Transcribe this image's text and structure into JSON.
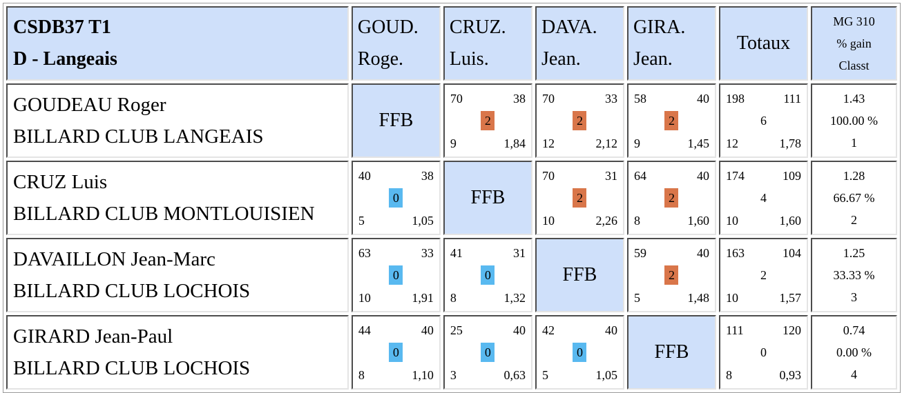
{
  "header": {
    "title_line1": "CSDB37 T1",
    "title_line2": "D - Langeais",
    "columns": [
      {
        "line1": "GOUD.",
        "line2": "Roge."
      },
      {
        "line1": "CRUZ.",
        "line2": "Luis."
      },
      {
        "line1": "DAVA.",
        "line2": "Jean."
      },
      {
        "line1": "GIRA.",
        "line2": "Jean."
      }
    ],
    "totals_label": "Totaux",
    "mg_line1": "MG 310",
    "mg_line2": "% gain",
    "mg_line3": "Classt"
  },
  "ffb_label": "FFB",
  "colors": {
    "header_bg": "#cfe0fa",
    "win_badge": "#d9764a",
    "loss_badge": "#59b9f0"
  },
  "rows": [
    {
      "name": "GOUDEAU Roger",
      "club": "BILLARD CLUB LANGEAIS",
      "cells": [
        null,
        {
          "tl": "70",
          "tr": "38",
          "pts": "2",
          "bl": "9",
          "br": "1,84"
        },
        {
          "tl": "70",
          "tr": "33",
          "pts": "2",
          "bl": "12",
          "br": "2,12"
        },
        {
          "tl": "58",
          "tr": "40",
          "pts": "2",
          "bl": "9",
          "br": "1,45"
        }
      ],
      "totals": {
        "tl": "198",
        "tr": "111",
        "pts": "6",
        "bl": "12",
        "br": "1,78"
      },
      "mg": {
        "avg": "1.43",
        "pct": "100.00 %",
        "rank": "1"
      }
    },
    {
      "name": "CRUZ Luis",
      "club": "BILLARD CLUB MONTLOUISIEN",
      "cells": [
        {
          "tl": "40",
          "tr": "38",
          "pts": "0",
          "bl": "5",
          "br": "1,05"
        },
        null,
        {
          "tl": "70",
          "tr": "31",
          "pts": "2",
          "bl": "10",
          "br": "2,26"
        },
        {
          "tl": "64",
          "tr": "40",
          "pts": "2",
          "bl": "8",
          "br": "1,60"
        }
      ],
      "totals": {
        "tl": "174",
        "tr": "109",
        "pts": "4",
        "bl": "10",
        "br": "1,60"
      },
      "mg": {
        "avg": "1.28",
        "pct": "66.67 %",
        "rank": "2"
      }
    },
    {
      "name": "DAVAILLON Jean-Marc",
      "club": "BILLARD CLUB LOCHOIS",
      "cells": [
        {
          "tl": "63",
          "tr": "33",
          "pts": "0",
          "bl": "10",
          "br": "1,91"
        },
        {
          "tl": "41",
          "tr": "31",
          "pts": "0",
          "bl": "8",
          "br": "1,32"
        },
        null,
        {
          "tl": "59",
          "tr": "40",
          "pts": "2",
          "bl": "5",
          "br": "1,48"
        }
      ],
      "totals": {
        "tl": "163",
        "tr": "104",
        "pts": "2",
        "bl": "10",
        "br": "1,57"
      },
      "mg": {
        "avg": "1.25",
        "pct": "33.33 %",
        "rank": "3"
      }
    },
    {
      "name": "GIRARD Jean-Paul",
      "club": "BILLARD CLUB LOCHOIS",
      "cells": [
        {
          "tl": "44",
          "tr": "40",
          "pts": "0",
          "bl": "8",
          "br": "1,10"
        },
        {
          "tl": "25",
          "tr": "40",
          "pts": "0",
          "bl": "3",
          "br": "0,63"
        },
        {
          "tl": "42",
          "tr": "40",
          "pts": "0",
          "bl": "5",
          "br": "1,05"
        },
        null
      ],
      "totals": {
        "tl": "111",
        "tr": "120",
        "pts": "0",
        "bl": "8",
        "br": "0,93"
      },
      "mg": {
        "avg": "0.74",
        "pct": "0.00 %",
        "rank": "4"
      }
    }
  ]
}
